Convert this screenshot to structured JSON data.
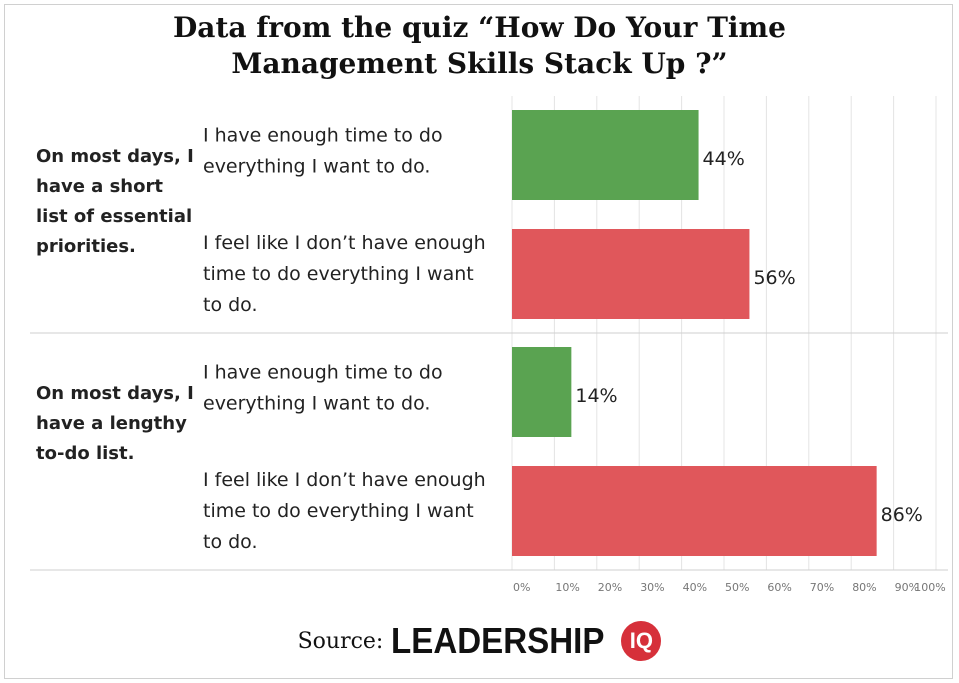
{
  "title_lines": [
    "Data from the quiz “How Do Your Time",
    "Management Skills Stack Up ?”"
  ],
  "source": {
    "label": "Source:",
    "logo_word": "LEADERSHIP",
    "logo_badge": "IQ"
  },
  "colors": {
    "enough_time": "#5aa351",
    "not_enough_time": "#e0575b",
    "grid": "#e4e4e4",
    "divider": "#cfcfcf"
  },
  "chart_data": {
    "type": "bar",
    "orientation": "horizontal",
    "title": "Data from the quiz “How Do Your Time Management Skills Stack Up ?”",
    "xlim": [
      0,
      100
    ],
    "x_ticks": [
      "0%",
      "10%",
      "20%",
      "30%",
      "40%",
      "50%",
      "60%",
      "70%",
      "80%",
      "90%",
      "100%"
    ],
    "unit": "%",
    "grid": true,
    "groups": [
      {
        "label": "On most days, I have a short list of essential priorities.",
        "label_lines": [
          "On most days, I",
          "have a short",
          "list of essential",
          "priorities."
        ],
        "bars": [
          {
            "category": "I have enough time to do everything I want to do.",
            "category_lines": [
              "I have enough time to do",
              "everything I want to do."
            ],
            "value": 44,
            "value_label": "44%",
            "color": "#5aa351"
          },
          {
            "category": "I feel like I don’t have enough time to do everything I want to do.",
            "category_lines": [
              "I feel like I don’t have enough",
              "time to do everything I want",
              "to do."
            ],
            "value": 56,
            "value_label": "56%",
            "color": "#e0575b"
          }
        ]
      },
      {
        "label": "On most days, I have a lengthy to-do list.",
        "label_lines": [
          "On most days, I",
          "have a lengthy",
          "to-do list."
        ],
        "bars": [
          {
            "category": "I have enough time to do everything I want to do.",
            "category_lines": [
              "I have enough time to do",
              "everything I want to do."
            ],
            "value": 14,
            "value_label": "14%",
            "color": "#5aa351"
          },
          {
            "category": "I feel like I don’t have enough time to do everything I want to do.",
            "category_lines": [
              "I feel like I don’t have enough",
              "time to do everything I want",
              "to do."
            ],
            "value": 86,
            "value_label": "86%",
            "color": "#e0575b"
          }
        ]
      }
    ]
  }
}
